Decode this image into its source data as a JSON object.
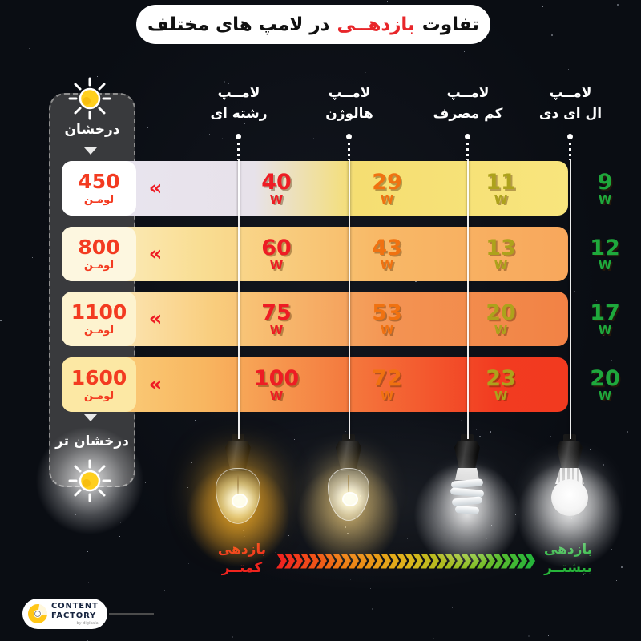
{
  "title": {
    "part1": "تفاوت",
    "highlight": "بازدهــی",
    "part2": "در لامپ های مختلف"
  },
  "scale": {
    "top_label": "درخشان",
    "bottom_label": "درخشان تر",
    "sun_color": "#ffcf1e"
  },
  "columns": [
    {
      "id": "incandescent",
      "line1": "لامــپ",
      "line2": "رشته ای",
      "value_color": "#ee1c24"
    },
    {
      "id": "halogen",
      "line1": "لامــپ",
      "line2": "هالوژن",
      "value_color": "#f07211"
    },
    {
      "id": "cfl",
      "line1": "لامــپ",
      "line2": "کم مصرف",
      "value_color": "#ada21c"
    },
    {
      "id": "led",
      "line1": "لامــپ",
      "line2": "ال ای دی",
      "value_color": "#1ea83c"
    }
  ],
  "watt_unit": "W",
  "lumen_unit": "لومـن",
  "row_chevron": "«",
  "rows": [
    {
      "lumens": "450",
      "values": [
        "40",
        "29",
        "11",
        "9"
      ]
    },
    {
      "lumens": "800",
      "values": [
        "60",
        "43",
        "13",
        "12"
      ]
    },
    {
      "lumens": "1100",
      "values": [
        "75",
        "53",
        "20",
        "17"
      ]
    },
    {
      "lumens": "1600",
      "values": [
        "100",
        "72",
        "23",
        "20"
      ]
    }
  ],
  "arrow": {
    "left_line1": "بازدهی",
    "left_line2": "کمتــر",
    "right_line1": "بازدهی",
    "right_line2": "بیشتــر",
    "left_color": "#f1251f",
    "right_color": "#27b53a",
    "gradient": [
      "#f1251f",
      "#ee7c12",
      "#dfb51c",
      "#8cbf22",
      "#27b53a"
    ],
    "chevron_count": 32
  },
  "footer": {
    "brand_line1": "CONTENT",
    "brand_line2": "FACTORY",
    "brand_sub": "by digikala"
  },
  "chart_data": {
    "type": "table",
    "title": "تفاوت بازدهی در لامپ های مختلف",
    "row_axis_label": "لومن",
    "lumens": [
      450,
      800,
      1100,
      1600
    ],
    "series": [
      {
        "name": "لامپ رشته ای",
        "watts": [
          40,
          60,
          75,
          100
        ]
      },
      {
        "name": "لامپ هالوژن",
        "watts": [
          29,
          43,
          53,
          72
        ]
      },
      {
        "name": "لامپ کم مصرف",
        "watts": [
          11,
          13,
          20,
          23
        ]
      },
      {
        "name": "لامپ ال ای دی",
        "watts": [
          9,
          12,
          17,
          20
        ]
      }
    ],
    "brightness_scale": {
      "top": "درخشان",
      "bottom": "درخشان تر"
    },
    "efficiency_annotation": {
      "left": "بازدهی کمتر",
      "right": "بازدهی بیشتر"
    }
  }
}
